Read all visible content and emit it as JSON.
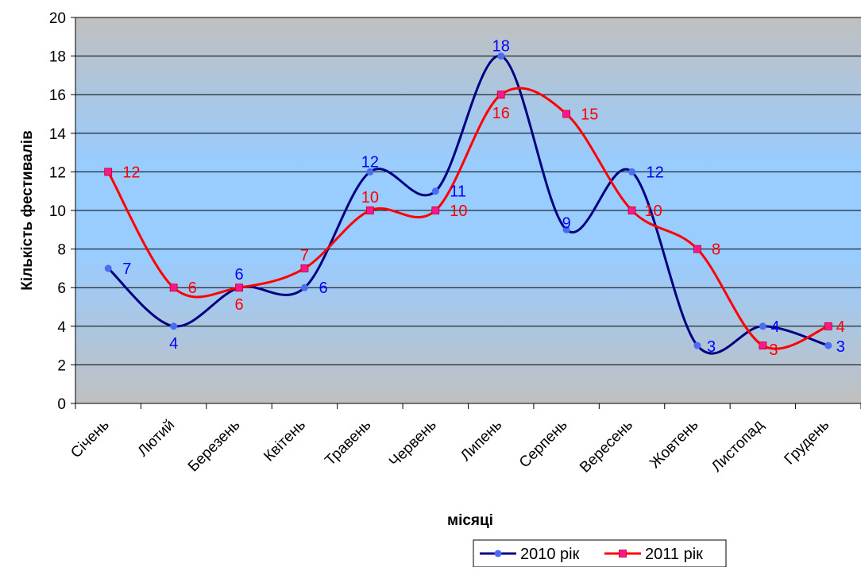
{
  "chart_data": {
    "type": "line",
    "categories": [
      "Січень",
      "Лютий",
      "Березень",
      "Квітень",
      "Травень",
      "Червень",
      "Липень",
      "Серпень",
      "Вересень",
      "Жовтень",
      "Листопад",
      "Грудень"
    ],
    "series": [
      {
        "name": "2010 рік",
        "values": [
          7,
          4,
          6,
          6,
          12,
          11,
          18,
          9,
          12,
          3,
          4,
          3
        ],
        "color": "#000080",
        "label_color": "#0000FF",
        "marker": "circle",
        "marker_color": "#4A6CF0"
      },
      {
        "name": "2011 рік",
        "values": [
          12,
          6,
          6,
          7,
          10,
          10,
          16,
          15,
          10,
          8,
          3,
          4
        ],
        "color": "#FF0000",
        "label_color": "#FF0000",
        "marker": "square",
        "marker_color": "#FF1493"
      }
    ],
    "xlabel": "місяці",
    "ylabel": "Кількість фестивалів",
    "ylim": [
      0,
      20
    ],
    "yticks": [
      0,
      2,
      4,
      6,
      8,
      10,
      12,
      14,
      16,
      18,
      20
    ],
    "grid": true,
    "smooth": true,
    "legend": "bottom",
    "plot_background": "gradient grey-blue-grey"
  }
}
